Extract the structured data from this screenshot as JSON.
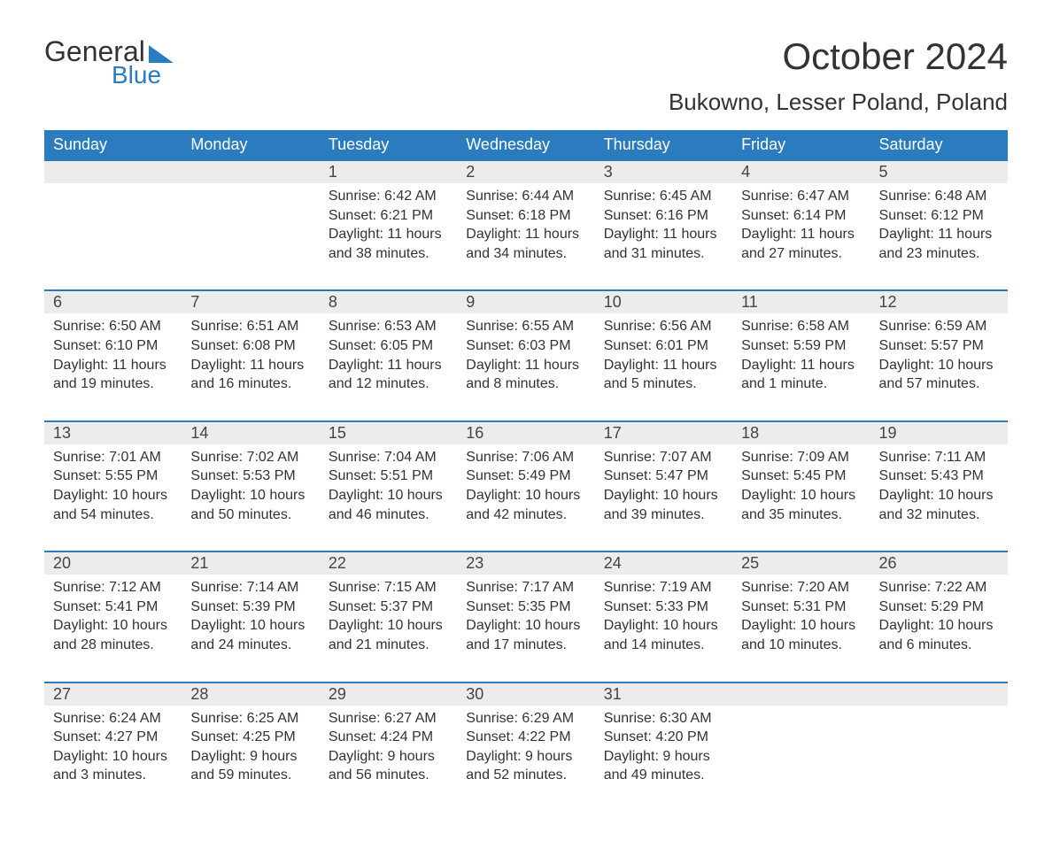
{
  "brand": {
    "part1": "General",
    "part2": "Blue"
  },
  "title": "October 2024",
  "location": "Bukowno, Lesser Poland, Poland",
  "colors": {
    "header_bg": "#2b7bbf",
    "header_text": "#ffffff",
    "daynum_bg": "#ececec",
    "row_border": "#2b7bbf",
    "body_text": "#333333",
    "page_bg": "#ffffff"
  },
  "fonts": {
    "title_size": 42,
    "location_size": 26,
    "header_size": 18,
    "cell_size": 16
  },
  "weekdays": [
    "Sunday",
    "Monday",
    "Tuesday",
    "Wednesday",
    "Thursday",
    "Friday",
    "Saturday"
  ],
  "labels": {
    "sunrise": "Sunrise: ",
    "sunset": "Sunset: ",
    "daylight": "Daylight: "
  },
  "weeks": [
    [
      null,
      null,
      {
        "n": "1",
        "sr": "6:42 AM",
        "ss": "6:21 PM",
        "dl": "11 hours and 38 minutes."
      },
      {
        "n": "2",
        "sr": "6:44 AM",
        "ss": "6:18 PM",
        "dl": "11 hours and 34 minutes."
      },
      {
        "n": "3",
        "sr": "6:45 AM",
        "ss": "6:16 PM",
        "dl": "11 hours and 31 minutes."
      },
      {
        "n": "4",
        "sr": "6:47 AM",
        "ss": "6:14 PM",
        "dl": "11 hours and 27 minutes."
      },
      {
        "n": "5",
        "sr": "6:48 AM",
        "ss": "6:12 PM",
        "dl": "11 hours and 23 minutes."
      }
    ],
    [
      {
        "n": "6",
        "sr": "6:50 AM",
        "ss": "6:10 PM",
        "dl": "11 hours and 19 minutes."
      },
      {
        "n": "7",
        "sr": "6:51 AM",
        "ss": "6:08 PM",
        "dl": "11 hours and 16 minutes."
      },
      {
        "n": "8",
        "sr": "6:53 AM",
        "ss": "6:05 PM",
        "dl": "11 hours and 12 minutes."
      },
      {
        "n": "9",
        "sr": "6:55 AM",
        "ss": "6:03 PM",
        "dl": "11 hours and 8 minutes."
      },
      {
        "n": "10",
        "sr": "6:56 AM",
        "ss": "6:01 PM",
        "dl": "11 hours and 5 minutes."
      },
      {
        "n": "11",
        "sr": "6:58 AM",
        "ss": "5:59 PM",
        "dl": "11 hours and 1 minute."
      },
      {
        "n": "12",
        "sr": "6:59 AM",
        "ss": "5:57 PM",
        "dl": "10 hours and 57 minutes."
      }
    ],
    [
      {
        "n": "13",
        "sr": "7:01 AM",
        "ss": "5:55 PM",
        "dl": "10 hours and 54 minutes."
      },
      {
        "n": "14",
        "sr": "7:02 AM",
        "ss": "5:53 PM",
        "dl": "10 hours and 50 minutes."
      },
      {
        "n": "15",
        "sr": "7:04 AM",
        "ss": "5:51 PM",
        "dl": "10 hours and 46 minutes."
      },
      {
        "n": "16",
        "sr": "7:06 AM",
        "ss": "5:49 PM",
        "dl": "10 hours and 42 minutes."
      },
      {
        "n": "17",
        "sr": "7:07 AM",
        "ss": "5:47 PM",
        "dl": "10 hours and 39 minutes."
      },
      {
        "n": "18",
        "sr": "7:09 AM",
        "ss": "5:45 PM",
        "dl": "10 hours and 35 minutes."
      },
      {
        "n": "19",
        "sr": "7:11 AM",
        "ss": "5:43 PM",
        "dl": "10 hours and 32 minutes."
      }
    ],
    [
      {
        "n": "20",
        "sr": "7:12 AM",
        "ss": "5:41 PM",
        "dl": "10 hours and 28 minutes."
      },
      {
        "n": "21",
        "sr": "7:14 AM",
        "ss": "5:39 PM",
        "dl": "10 hours and 24 minutes."
      },
      {
        "n": "22",
        "sr": "7:15 AM",
        "ss": "5:37 PM",
        "dl": "10 hours and 21 minutes."
      },
      {
        "n": "23",
        "sr": "7:17 AM",
        "ss": "5:35 PM",
        "dl": "10 hours and 17 minutes."
      },
      {
        "n": "24",
        "sr": "7:19 AM",
        "ss": "5:33 PM",
        "dl": "10 hours and 14 minutes."
      },
      {
        "n": "25",
        "sr": "7:20 AM",
        "ss": "5:31 PM",
        "dl": "10 hours and 10 minutes."
      },
      {
        "n": "26",
        "sr": "7:22 AM",
        "ss": "5:29 PM",
        "dl": "10 hours and 6 minutes."
      }
    ],
    [
      {
        "n": "27",
        "sr": "6:24 AM",
        "ss": "4:27 PM",
        "dl": "10 hours and 3 minutes."
      },
      {
        "n": "28",
        "sr": "6:25 AM",
        "ss": "4:25 PM",
        "dl": "9 hours and 59 minutes."
      },
      {
        "n": "29",
        "sr": "6:27 AM",
        "ss": "4:24 PM",
        "dl": "9 hours and 56 minutes."
      },
      {
        "n": "30",
        "sr": "6:29 AM",
        "ss": "4:22 PM",
        "dl": "9 hours and 52 minutes."
      },
      {
        "n": "31",
        "sr": "6:30 AM",
        "ss": "4:20 PM",
        "dl": "9 hours and 49 minutes."
      },
      null,
      null
    ]
  ]
}
